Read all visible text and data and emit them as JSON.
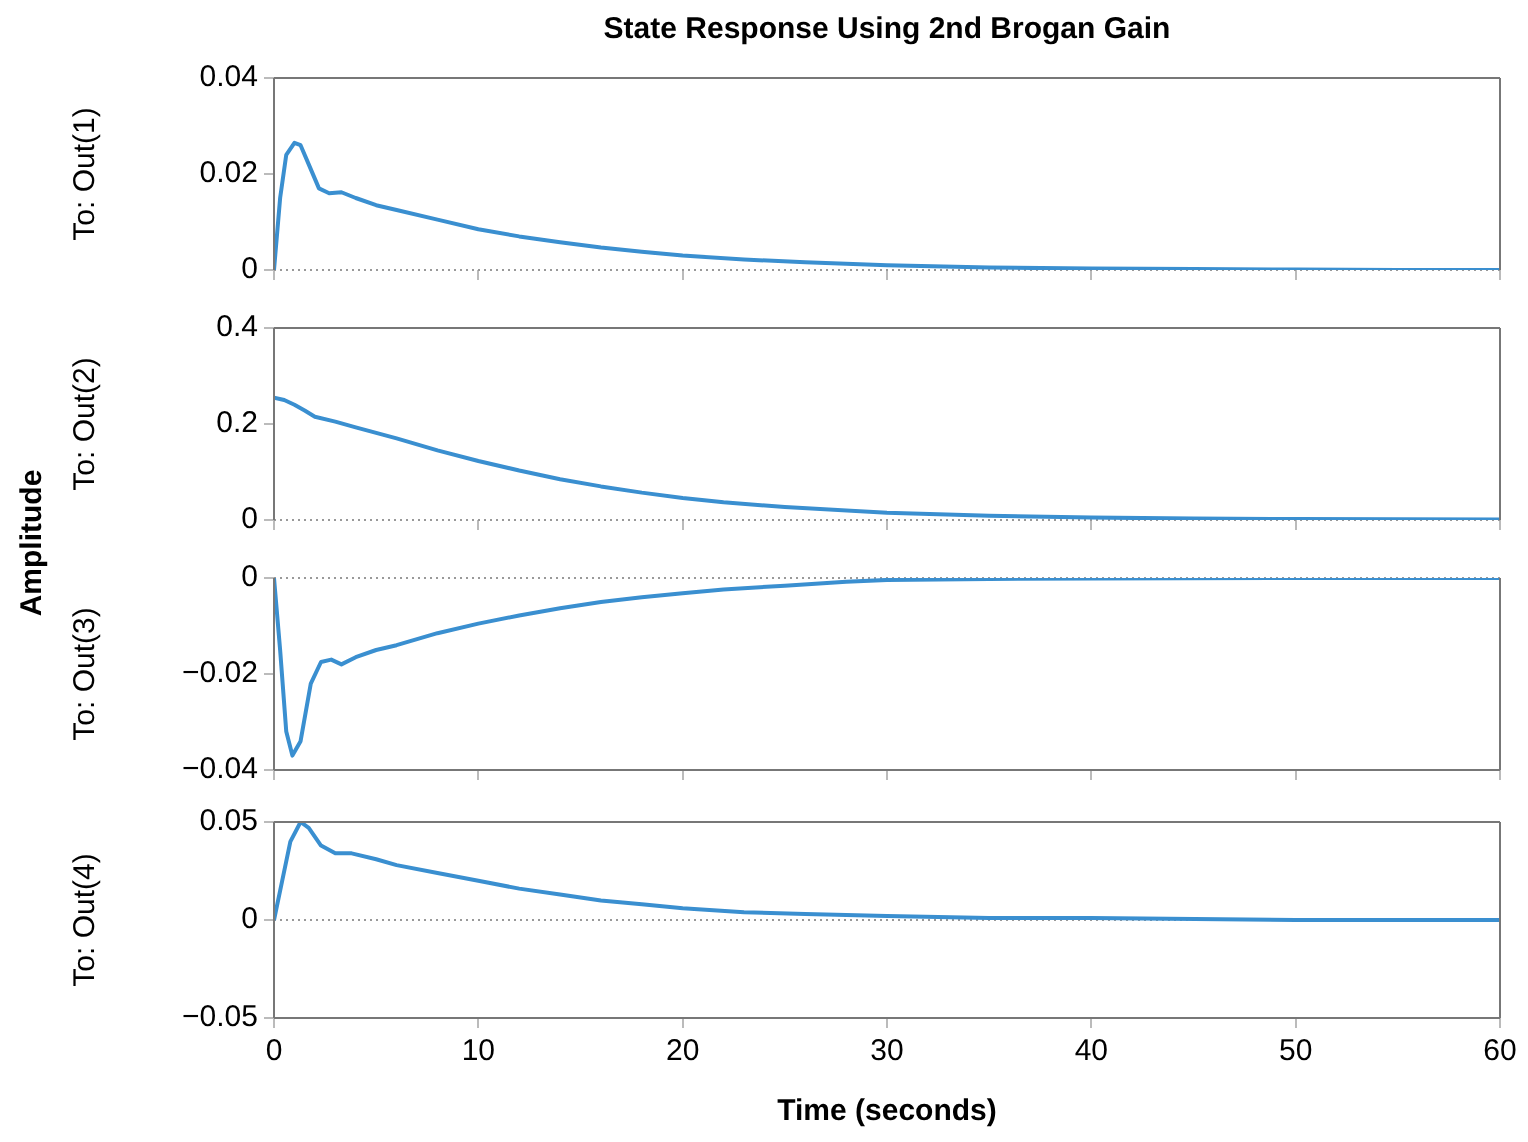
{
  "chart_data": [
    {
      "type": "line",
      "title": "State Response Using 2nd Brogan Gain",
      "ylabel": "To: Out(1)",
      "annotations": [
        "Amplitude"
      ],
      "marker": "none",
      "grid": false,
      "tick_labels": "y",
      "xlim": [
        0,
        60
      ],
      "xticks": [
        0,
        10,
        20,
        30,
        40,
        50,
        60
      ],
      "ylim": [
        0,
        0.04
      ],
      "yticks": [
        0,
        0.02,
        0.04
      ],
      "color": "#3a8fd0",
      "x": [
        0,
        0.3,
        0.6,
        1,
        1.3,
        1.7,
        2.2,
        2.7,
        3.3,
        4,
        5,
        6,
        8,
        10,
        12,
        14,
        16,
        18,
        20,
        23,
        26,
        30,
        35,
        40,
        45,
        50,
        55,
        60
      ],
      "values": [
        0,
        0.015,
        0.024,
        0.0265,
        0.026,
        0.022,
        0.017,
        0.016,
        0.0162,
        0.015,
        0.0135,
        0.0125,
        0.0105,
        0.0085,
        0.007,
        0.0058,
        0.0047,
        0.0038,
        0.003,
        0.0022,
        0.0016,
        0.001,
        0.0005,
        0.0003,
        0.0002,
        0.0001,
        0,
        0
      ],
      "ref_lines": [
        {
          "axis": "y",
          "value": 0,
          "color": "#999999",
          "line_style": "dotted"
        }
      ]
    },
    {
      "type": "line",
      "ylabel": "To: Out(2)",
      "marker": "none",
      "grid": false,
      "tick_labels": "y",
      "xlim": [
        0,
        60
      ],
      "xticks": [
        0,
        10,
        20,
        30,
        40,
        50,
        60
      ],
      "ylim": [
        0,
        0.4
      ],
      "yticks": [
        0,
        0.2,
        0.4
      ],
      "color": "#3a8fd0",
      "x": [
        0,
        0.5,
        1,
        1.5,
        2,
        3,
        4,
        6,
        8,
        10,
        12,
        14,
        16,
        18,
        20,
        22,
        25,
        30,
        35,
        40,
        45,
        50,
        60
      ],
      "values": [
        0.255,
        0.25,
        0.24,
        0.228,
        0.215,
        0.205,
        0.193,
        0.17,
        0.145,
        0.123,
        0.103,
        0.085,
        0.07,
        0.057,
        0.046,
        0.037,
        0.027,
        0.015,
        0.009,
        0.005,
        0.003,
        0.002,
        0.001
      ],
      "ref_lines": [
        {
          "axis": "y",
          "value": 0,
          "color": "#999999",
          "line_style": "dotted"
        }
      ]
    },
    {
      "type": "line",
      "ylabel": "To: Out(3)",
      "marker": "none",
      "grid": false,
      "tick_labels": "y",
      "xlim": [
        0,
        60
      ],
      "xticks": [
        0,
        10,
        20,
        30,
        40,
        50,
        60
      ],
      "ylim": [
        -0.04,
        0
      ],
      "yticks": [
        {
          "value": -0.04,
          "label": "−0.04"
        },
        {
          "value": -0.02,
          "label": "−0.02"
        },
        0
      ],
      "color": "#3a8fd0",
      "x": [
        0,
        0.3,
        0.6,
        0.9,
        1.3,
        1.8,
        2.3,
        2.8,
        3.3,
        4,
        5,
        6,
        8,
        10,
        12,
        14,
        16,
        18,
        20,
        22,
        25,
        28,
        30,
        35,
        40,
        50,
        60
      ],
      "values": [
        0,
        -0.015,
        -0.032,
        -0.037,
        -0.034,
        -0.022,
        -0.0175,
        -0.017,
        -0.018,
        -0.0165,
        -0.015,
        -0.014,
        -0.0115,
        -0.0095,
        -0.0078,
        -0.0063,
        -0.005,
        -0.004,
        -0.0032,
        -0.0024,
        -0.0016,
        -0.0008,
        -0.0004,
        -0.0002,
        -0.0001,
        0,
        0
      ],
      "ref_lines": [
        {
          "axis": "y",
          "value": 0,
          "color": "#999999",
          "line_style": "dotted"
        }
      ]
    },
    {
      "type": "line",
      "xlabel": "Time (seconds)",
      "ylabel": "To: Out(4)",
      "marker": "none",
      "grid": false,
      "xlim": [
        0,
        60
      ],
      "xticks": [
        0,
        10,
        20,
        30,
        40,
        50,
        60
      ],
      "ylim": [
        -0.05,
        0.05
      ],
      "yticks": [
        {
          "value": -0.05,
          "label": "−0.05"
        },
        0,
        0.05
      ],
      "color": "#3a8fd0",
      "x": [
        0,
        0.4,
        0.8,
        1.3,
        1.7,
        2.3,
        3,
        3.8,
        5,
        6,
        8,
        10,
        12,
        14,
        16,
        18,
        20,
        23,
        26,
        30,
        35,
        40,
        50,
        60
      ],
      "values": [
        0,
        0.02,
        0.04,
        0.05,
        0.047,
        0.038,
        0.034,
        0.034,
        0.031,
        0.028,
        0.024,
        0.02,
        0.016,
        0.013,
        0.01,
        0.008,
        0.006,
        0.004,
        0.003,
        0.002,
        0.001,
        0.001,
        0,
        0
      ],
      "ref_lines": [
        {
          "axis": "y",
          "value": 0,
          "color": "#999999",
          "line_style": "dotted"
        }
      ]
    }
  ]
}
